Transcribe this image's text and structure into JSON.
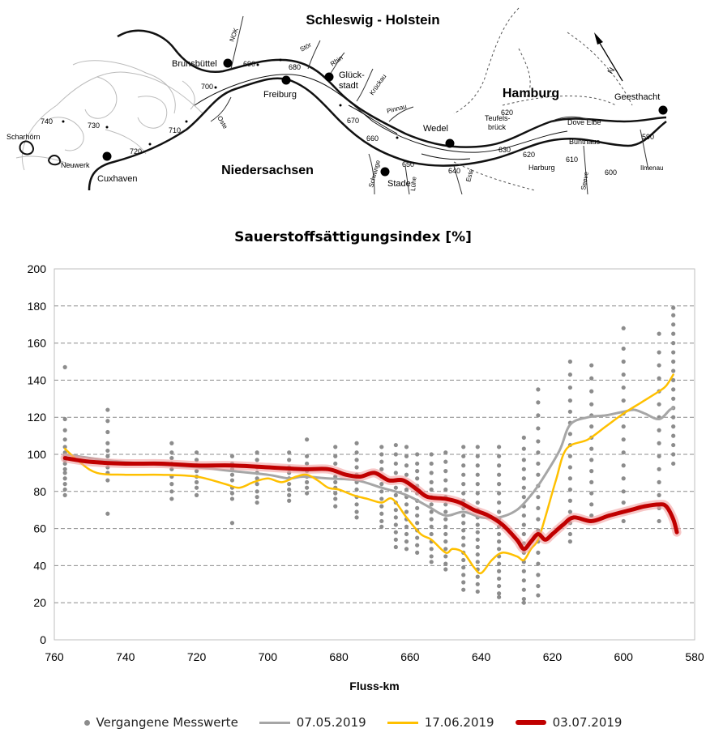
{
  "map": {
    "region_north": "Schleswig - Holstein",
    "region_south": "Niedersachsen",
    "city_hamburg": "Hamburg",
    "north_arrow": "N",
    "towns": [
      "Brunsbüttel",
      "Freiburg",
      "Glück-",
      "stadt",
      "Wedel",
      "Stade",
      "Cuxhaven",
      "Geesthacht",
      "Scharhörn",
      "Neuwerk"
    ],
    "places": [
      "Teufels-",
      "brück",
      "Harburg",
      "Bunthaus",
      "Dove Elbe"
    ],
    "rivers": [
      "NOK",
      "Stör",
      "Rhin",
      "Krückau",
      "Pinnau",
      "Oste",
      "Schwinge",
      "Lühe",
      "Este",
      "Seeve",
      "Ilmenau"
    ],
    "km_markers": [
      "740",
      "730",
      "720",
      "710",
      "700",
      "690",
      "680",
      "670",
      "660",
      "650",
      "640",
      "630",
      "620",
      "620",
      "610",
      "600",
      "590"
    ]
  },
  "chart_data": {
    "type": "line",
    "title": "Sauerstoffsättigungsindex [%]",
    "xlabel": "Fluss-km",
    "ylabel": "",
    "xlim": [
      760,
      580
    ],
    "x_reversed": true,
    "ylim": [
      0,
      200
    ],
    "x_ticks": [
      "760",
      "740",
      "720",
      "700",
      "680",
      "660",
      "640",
      "620",
      "600",
      "580"
    ],
    "y_ticks": [
      "0",
      "20",
      "40",
      "60",
      "80",
      "100",
      "120",
      "140",
      "160",
      "180",
      "200"
    ],
    "grid": "horizontal dashed",
    "legend_position": "bottom",
    "scatter_series": {
      "name": "Vergangene Messwerte",
      "color": "#8c8c8c",
      "columns": [
        {
          "x": 757,
          "y": [
            147,
            119,
            113,
            108,
            104,
            101,
            99,
            97,
            95,
            92,
            90,
            87,
            84,
            81,
            78
          ]
        },
        {
          "x": 745,
          "y": [
            124,
            118,
            112,
            106,
            102,
            99,
            96,
            93,
            90,
            86,
            68
          ]
        },
        {
          "x": 727,
          "y": [
            106,
            101,
            98,
            95,
            92,
            88,
            84,
            80,
            76
          ]
        },
        {
          "x": 720,
          "y": [
            101,
            97,
            94,
            91,
            88,
            85,
            82,
            78
          ]
        },
        {
          "x": 710,
          "y": [
            99,
            95,
            92,
            89,
            86,
            82,
            79,
            76,
            63
          ]
        },
        {
          "x": 703,
          "y": [
            101,
            97,
            93,
            90,
            87,
            84,
            80,
            77,
            74
          ]
        },
        {
          "x": 694,
          "y": [
            101,
            97,
            93,
            90,
            87,
            84,
            81,
            78,
            75
          ]
        },
        {
          "x": 689,
          "y": [
            108,
            99,
            95,
            91,
            88,
            85,
            82,
            79
          ]
        },
        {
          "x": 681,
          "y": [
            104,
            99,
            95,
            91,
            88,
            85,
            82,
            79,
            76,
            72
          ]
        },
        {
          "x": 675,
          "y": [
            106,
            101,
            97,
            93,
            89,
            85,
            81,
            77,
            73,
            69,
            66
          ]
        },
        {
          "x": 668,
          "y": [
            104,
            100,
            96,
            92,
            88,
            84,
            80,
            76,
            72,
            68,
            64,
            61
          ]
        },
        {
          "x": 664,
          "y": [
            105,
            100,
            95,
            90,
            86,
            82,
            78,
            74,
            70,
            66,
            62,
            58,
            54,
            50
          ]
        },
        {
          "x": 661,
          "y": [
            104,
            99,
            94,
            89,
            85,
            81,
            77,
            73,
            69,
            65,
            61,
            57,
            53,
            49
          ]
        },
        {
          "x": 658,
          "y": [
            100,
            95,
            91,
            87,
            83,
            79,
            75,
            71,
            67,
            63,
            59,
            55,
            51,
            47
          ]
        },
        {
          "x": 654,
          "y": [
            100,
            95,
            90,
            85,
            81,
            77,
            73,
            69,
            65,
            61,
            57,
            53,
            49,
            45,
            42
          ]
        },
        {
          "x": 650,
          "y": [
            101,
            96,
            91,
            86,
            81,
            77,
            73,
            69,
            65,
            61,
            57,
            53,
            49,
            45,
            41,
            38
          ]
        },
        {
          "x": 645,
          "y": [
            104,
            99,
            94,
            89,
            84,
            79,
            75,
            71,
            67,
            63,
            59,
            55,
            51,
            47,
            43,
            39,
            35,
            31,
            27
          ]
        },
        {
          "x": 641,
          "y": [
            104,
            99,
            94,
            89,
            84,
            79,
            74,
            70,
            66,
            62,
            58,
            54,
            50,
            46,
            42,
            38,
            34,
            30,
            26
          ]
        },
        {
          "x": 635,
          "y": [
            104,
            99,
            94,
            89,
            84,
            79,
            74,
            69,
            65,
            61,
            57,
            53,
            49,
            45,
            41,
            37,
            33,
            29,
            25,
            23
          ]
        },
        {
          "x": 628,
          "y": [
            109,
            103,
            97,
            92,
            87,
            82,
            77,
            72,
            67,
            62,
            57,
            52,
            47,
            42,
            37,
            32,
            27,
            22,
            20
          ]
        },
        {
          "x": 624,
          "y": [
            135,
            128,
            121,
            114,
            107,
            101,
            95,
            89,
            83,
            77,
            71,
            65,
            59,
            53,
            47,
            41,
            35,
            29,
            24
          ]
        },
        {
          "x": 615,
          "y": [
            150,
            143,
            136,
            129,
            123,
            117,
            111,
            105,
            99,
            93,
            87,
            81,
            75,
            69,
            63,
            57,
            53
          ]
        },
        {
          "x": 609,
          "y": [
            148,
            141,
            134,
            127,
            121,
            115,
            109,
            103,
            97,
            91,
            85,
            79,
            73,
            67
          ]
        },
        {
          "x": 600,
          "y": [
            168,
            157,
            150,
            143,
            136,
            129,
            122,
            115,
            108,
            101,
            94,
            87,
            80,
            74,
            64
          ]
        },
        {
          "x": 590,
          "y": [
            165,
            155,
            148,
            141,
            134,
            127,
            120,
            113,
            106,
            99,
            92,
            85,
            78,
            71,
            64
          ]
        },
        {
          "x": 586,
          "y": [
            179,
            175,
            170,
            165,
            160,
            155,
            150,
            145,
            140,
            135,
            130,
            125,
            120,
            115,
            110,
            105,
            100,
            95
          ]
        }
      ]
    },
    "series": [
      {
        "name": "07.05.2019",
        "color": "#a6a6a6",
        "points": [
          [
            757,
            100
          ],
          [
            746,
            97
          ],
          [
            735,
            95
          ],
          [
            720,
            93
          ],
          [
            710,
            91
          ],
          [
            700,
            89
          ],
          [
            694,
            87
          ],
          [
            690,
            88
          ],
          [
            683,
            87
          ],
          [
            675,
            86
          ],
          [
            668,
            82
          ],
          [
            661,
            78
          ],
          [
            655,
            72
          ],
          [
            650,
            67
          ],
          [
            645,
            69
          ],
          [
            640,
            66
          ],
          [
            635,
            66
          ],
          [
            630,
            70
          ],
          [
            626,
            78
          ],
          [
            623,
            86
          ],
          [
            618,
            102
          ],
          [
            615,
            116
          ],
          [
            610,
            120
          ],
          [
            605,
            121
          ],
          [
            600,
            123
          ],
          [
            597,
            124
          ],
          [
            594,
            122
          ],
          [
            590,
            119
          ],
          [
            587,
            124
          ],
          [
            586,
            125
          ]
        ]
      },
      {
        "name": "17.06.2019",
        "color": "#ffc000",
        "points": [
          [
            757,
            103
          ],
          [
            753,
            96
          ],
          [
            748,
            90
          ],
          [
            740,
            89
          ],
          [
            730,
            89
          ],
          [
            720,
            88
          ],
          [
            712,
            84
          ],
          [
            708,
            82
          ],
          [
            704,
            85
          ],
          [
            700,
            87
          ],
          [
            696,
            85
          ],
          [
            692,
            88
          ],
          [
            689,
            89
          ],
          [
            686,
            86
          ],
          [
            683,
            82
          ],
          [
            680,
            81
          ],
          [
            676,
            78
          ],
          [
            672,
            76
          ],
          [
            668,
            74
          ],
          [
            665,
            76
          ],
          [
            661,
            66
          ],
          [
            657,
            57
          ],
          [
            654,
            54
          ],
          [
            650,
            47
          ],
          [
            648,
            49
          ],
          [
            645,
            47
          ],
          [
            642,
            39
          ],
          [
            640,
            36
          ],
          [
            637,
            43
          ],
          [
            634,
            47
          ],
          [
            630,
            45
          ],
          [
            628,
            43
          ],
          [
            626,
            49
          ],
          [
            624,
            54
          ],
          [
            622,
            66
          ],
          [
            619,
            86
          ],
          [
            616,
            103
          ],
          [
            610,
            108
          ],
          [
            605,
            115
          ],
          [
            600,
            122
          ],
          [
            595,
            128
          ],
          [
            590,
            134
          ],
          [
            588,
            137
          ],
          [
            586,
            143
          ]
        ]
      },
      {
        "name": "03.07.2019",
        "color": "#c00000",
        "points": [
          [
            757,
            98
          ],
          [
            750,
            96
          ],
          [
            740,
            95
          ],
          [
            730,
            95
          ],
          [
            720,
            94
          ],
          [
            710,
            94
          ],
          [
            700,
            93
          ],
          [
            690,
            92
          ],
          [
            683,
            92
          ],
          [
            678,
            89
          ],
          [
            674,
            88
          ],
          [
            670,
            90
          ],
          [
            666,
            86
          ],
          [
            662,
            86
          ],
          [
            658,
            81
          ],
          [
            655,
            77
          ],
          [
            650,
            76
          ],
          [
            646,
            74
          ],
          [
            642,
            70
          ],
          [
            638,
            67
          ],
          [
            634,
            62
          ],
          [
            630,
            54
          ],
          [
            628,
            49
          ],
          [
            626,
            53
          ],
          [
            624,
            57
          ],
          [
            622,
            54
          ],
          [
            620,
            57
          ],
          [
            617,
            62
          ],
          [
            614,
            66
          ],
          [
            609,
            64
          ],
          [
            604,
            67
          ],
          [
            598,
            70
          ],
          [
            594,
            72
          ],
          [
            590,
            73
          ],
          [
            588,
            72
          ],
          [
            586,
            65
          ],
          [
            585,
            58
          ]
        ]
      }
    ]
  }
}
